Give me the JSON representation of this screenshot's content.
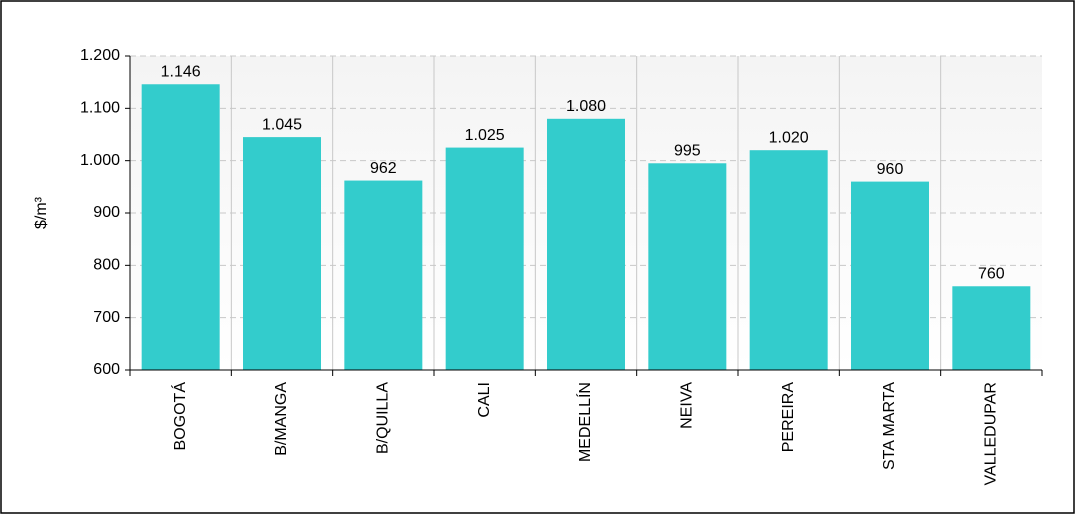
{
  "chart_data": {
    "type": "bar",
    "y_label": "$/m³",
    "categories": [
      "BOGOTÁ",
      "B/MANGA",
      "B/QUILLA",
      "CALI",
      "MEDELLÍN",
      "NEIVA",
      "PEREIRA",
      "STA MARTA",
      "VALLEDUPAR"
    ],
    "values": [
      1146,
      1045,
      962,
      1025,
      1080,
      995,
      1020,
      960,
      760
    ],
    "value_labels": [
      "1.146",
      "1.045",
      "962",
      "1.025",
      "1.080",
      "995",
      "1.020",
      "960",
      "760"
    ],
    "color": "#33cccc",
    "ylim": [
      600,
      1200
    ],
    "yticks": [
      600,
      700,
      800,
      900,
      {
        "value": 1000,
        "label": "1.000"
      },
      {
        "value": 1100,
        "label": "1.100"
      },
      {
        "value": 1200,
        "label": "1.200"
      }
    ],
    "grid": true
  }
}
